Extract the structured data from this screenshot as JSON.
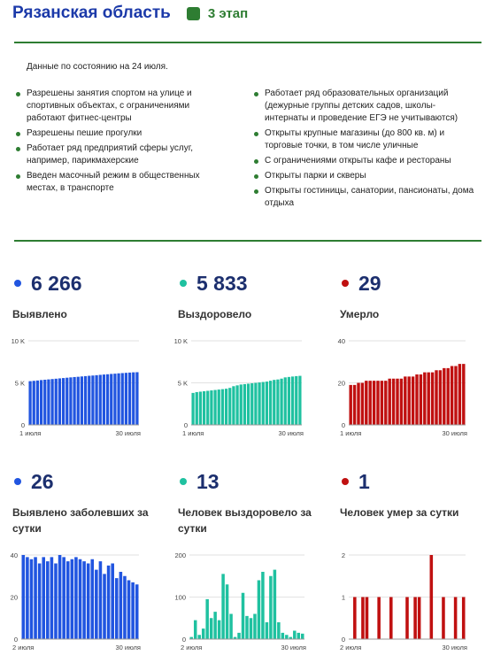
{
  "header": {
    "region": "Рязанская область",
    "stage_label": "3 этап",
    "stage_color": "#2e7d32"
  },
  "info": {
    "date_note": "Данные по состоянию на 24 июля.",
    "left_items": [
      "Разрешены занятия спортом на улице и спортивных объектах, с ограничениями работают фитнес-центры",
      "Разрешены пешие прогулки",
      "Работает ряд предприятий сферы услуг, например, парикмахерские",
      "Введен масочный режим в общественных местах, в транспорте"
    ],
    "right_items": [
      "Работает ряд образовательных организаций (дежурные группы детских садов, школы-интернаты и проведение ЕГЭ не учитываются)",
      "Открыты крупные магазины (до 800 кв. м) и торговые точки, в том числе уличные",
      "С ограничениями открыты кафе и рестораны",
      "Открыты парки и скверы",
      "Открыты гостиницы, санатории, пансионаты, дома отдыха"
    ]
  },
  "stats": [
    {
      "value": "6 266",
      "label": "Выявлено",
      "color": "#2155e0"
    },
    {
      "value": "5 833",
      "label": "Выздоровело",
      "color": "#1fc1a0"
    },
    {
      "value": "29",
      "label": "Умерло",
      "color": "#c01010"
    },
    {
      "value": "26",
      "label": "Выявлено заболевших за сутки",
      "color": "#2155e0"
    },
    {
      "value": "13",
      "label": "Человек выздоровело за сутки",
      "color": "#1fc1a0"
    },
    {
      "value": "1",
      "label": "Человек умер за сутки",
      "color": "#c01010"
    }
  ],
  "chart_data": [
    {
      "type": "bar",
      "xlabel_start": "1 июля",
      "xlabel_end": "30 июля",
      "ylim": [
        0,
        10000
      ],
      "yticks": [
        "0",
        "5 K",
        "10 K"
      ],
      "color": "#2155e0",
      "values": [
        5200,
        5240,
        5280,
        5330,
        5370,
        5410,
        5450,
        5490,
        5530,
        5570,
        5610,
        5650,
        5690,
        5720,
        5760,
        5800,
        5840,
        5870,
        5910,
        5950,
        5990,
        6020,
        6060,
        6090,
        6130,
        6160,
        6190,
        6220,
        6250,
        6266
      ]
    },
    {
      "type": "bar",
      "xlabel_start": "1 июля",
      "xlabel_end": "30 июля",
      "ylim": [
        0,
        10000
      ],
      "yticks": [
        "0",
        "5 K",
        "10 K"
      ],
      "color": "#1fc1a0",
      "values": [
        3800,
        3900,
        3950,
        4000,
        4050,
        4100,
        4150,
        4200,
        4250,
        4300,
        4400,
        4600,
        4700,
        4800,
        4850,
        4900,
        4950,
        5000,
        5050,
        5100,
        5150,
        5250,
        5350,
        5400,
        5500,
        5650,
        5700,
        5750,
        5800,
        5833
      ]
    },
    {
      "type": "bar",
      "xlabel_start": "1 июля",
      "xlabel_end": "30 июля",
      "ylim": [
        0,
        40
      ],
      "yticks": [
        "0",
        "20",
        "40"
      ],
      "color": "#c01010",
      "values": [
        19,
        19,
        20,
        20,
        21,
        21,
        21,
        21,
        21,
        21,
        22,
        22,
        22,
        22,
        23,
        23,
        23,
        24,
        24,
        25,
        25,
        25,
        26,
        26,
        27,
        27,
        28,
        28,
        29,
        29
      ]
    },
    {
      "type": "bar",
      "xlabel_start": "2 июля",
      "xlabel_end": "30 июля",
      "ylim": [
        0,
        40
      ],
      "yticks": [
        "0",
        "20",
        "40"
      ],
      "color": "#2155e0",
      "values": [
        40,
        39,
        38,
        39,
        36,
        39,
        37,
        39,
        36,
        40,
        39,
        37,
        38,
        39,
        38,
        37,
        36,
        38,
        33,
        37,
        31,
        35,
        36,
        29,
        32,
        30,
        28,
        27,
        26
      ]
    },
    {
      "type": "bar",
      "xlabel_start": "2 июля",
      "xlabel_end": "30 июля",
      "ylim": [
        0,
        200
      ],
      "yticks": [
        "0",
        "100",
        "200"
      ],
      "color": "#1fc1a0",
      "values": [
        5,
        45,
        10,
        25,
        95,
        50,
        65,
        45,
        155,
        130,
        60,
        5,
        15,
        110,
        55,
        50,
        60,
        140,
        160,
        40,
        150,
        165,
        40,
        15,
        10,
        5,
        20,
        15,
        13
      ]
    },
    {
      "type": "bar",
      "xlabel_start": "2 июля",
      "xlabel_end": "30 июля",
      "ylim": [
        0,
        2
      ],
      "yticks": [
        "0",
        "1",
        "2"
      ],
      "color": "#c01010",
      "values": [
        0,
        1,
        0,
        1,
        1,
        0,
        0,
        1,
        0,
        0,
        1,
        0,
        0,
        0,
        1,
        0,
        1,
        1,
        0,
        0,
        2,
        0,
        0,
        1,
        0,
        0,
        1,
        0,
        1
      ]
    }
  ]
}
